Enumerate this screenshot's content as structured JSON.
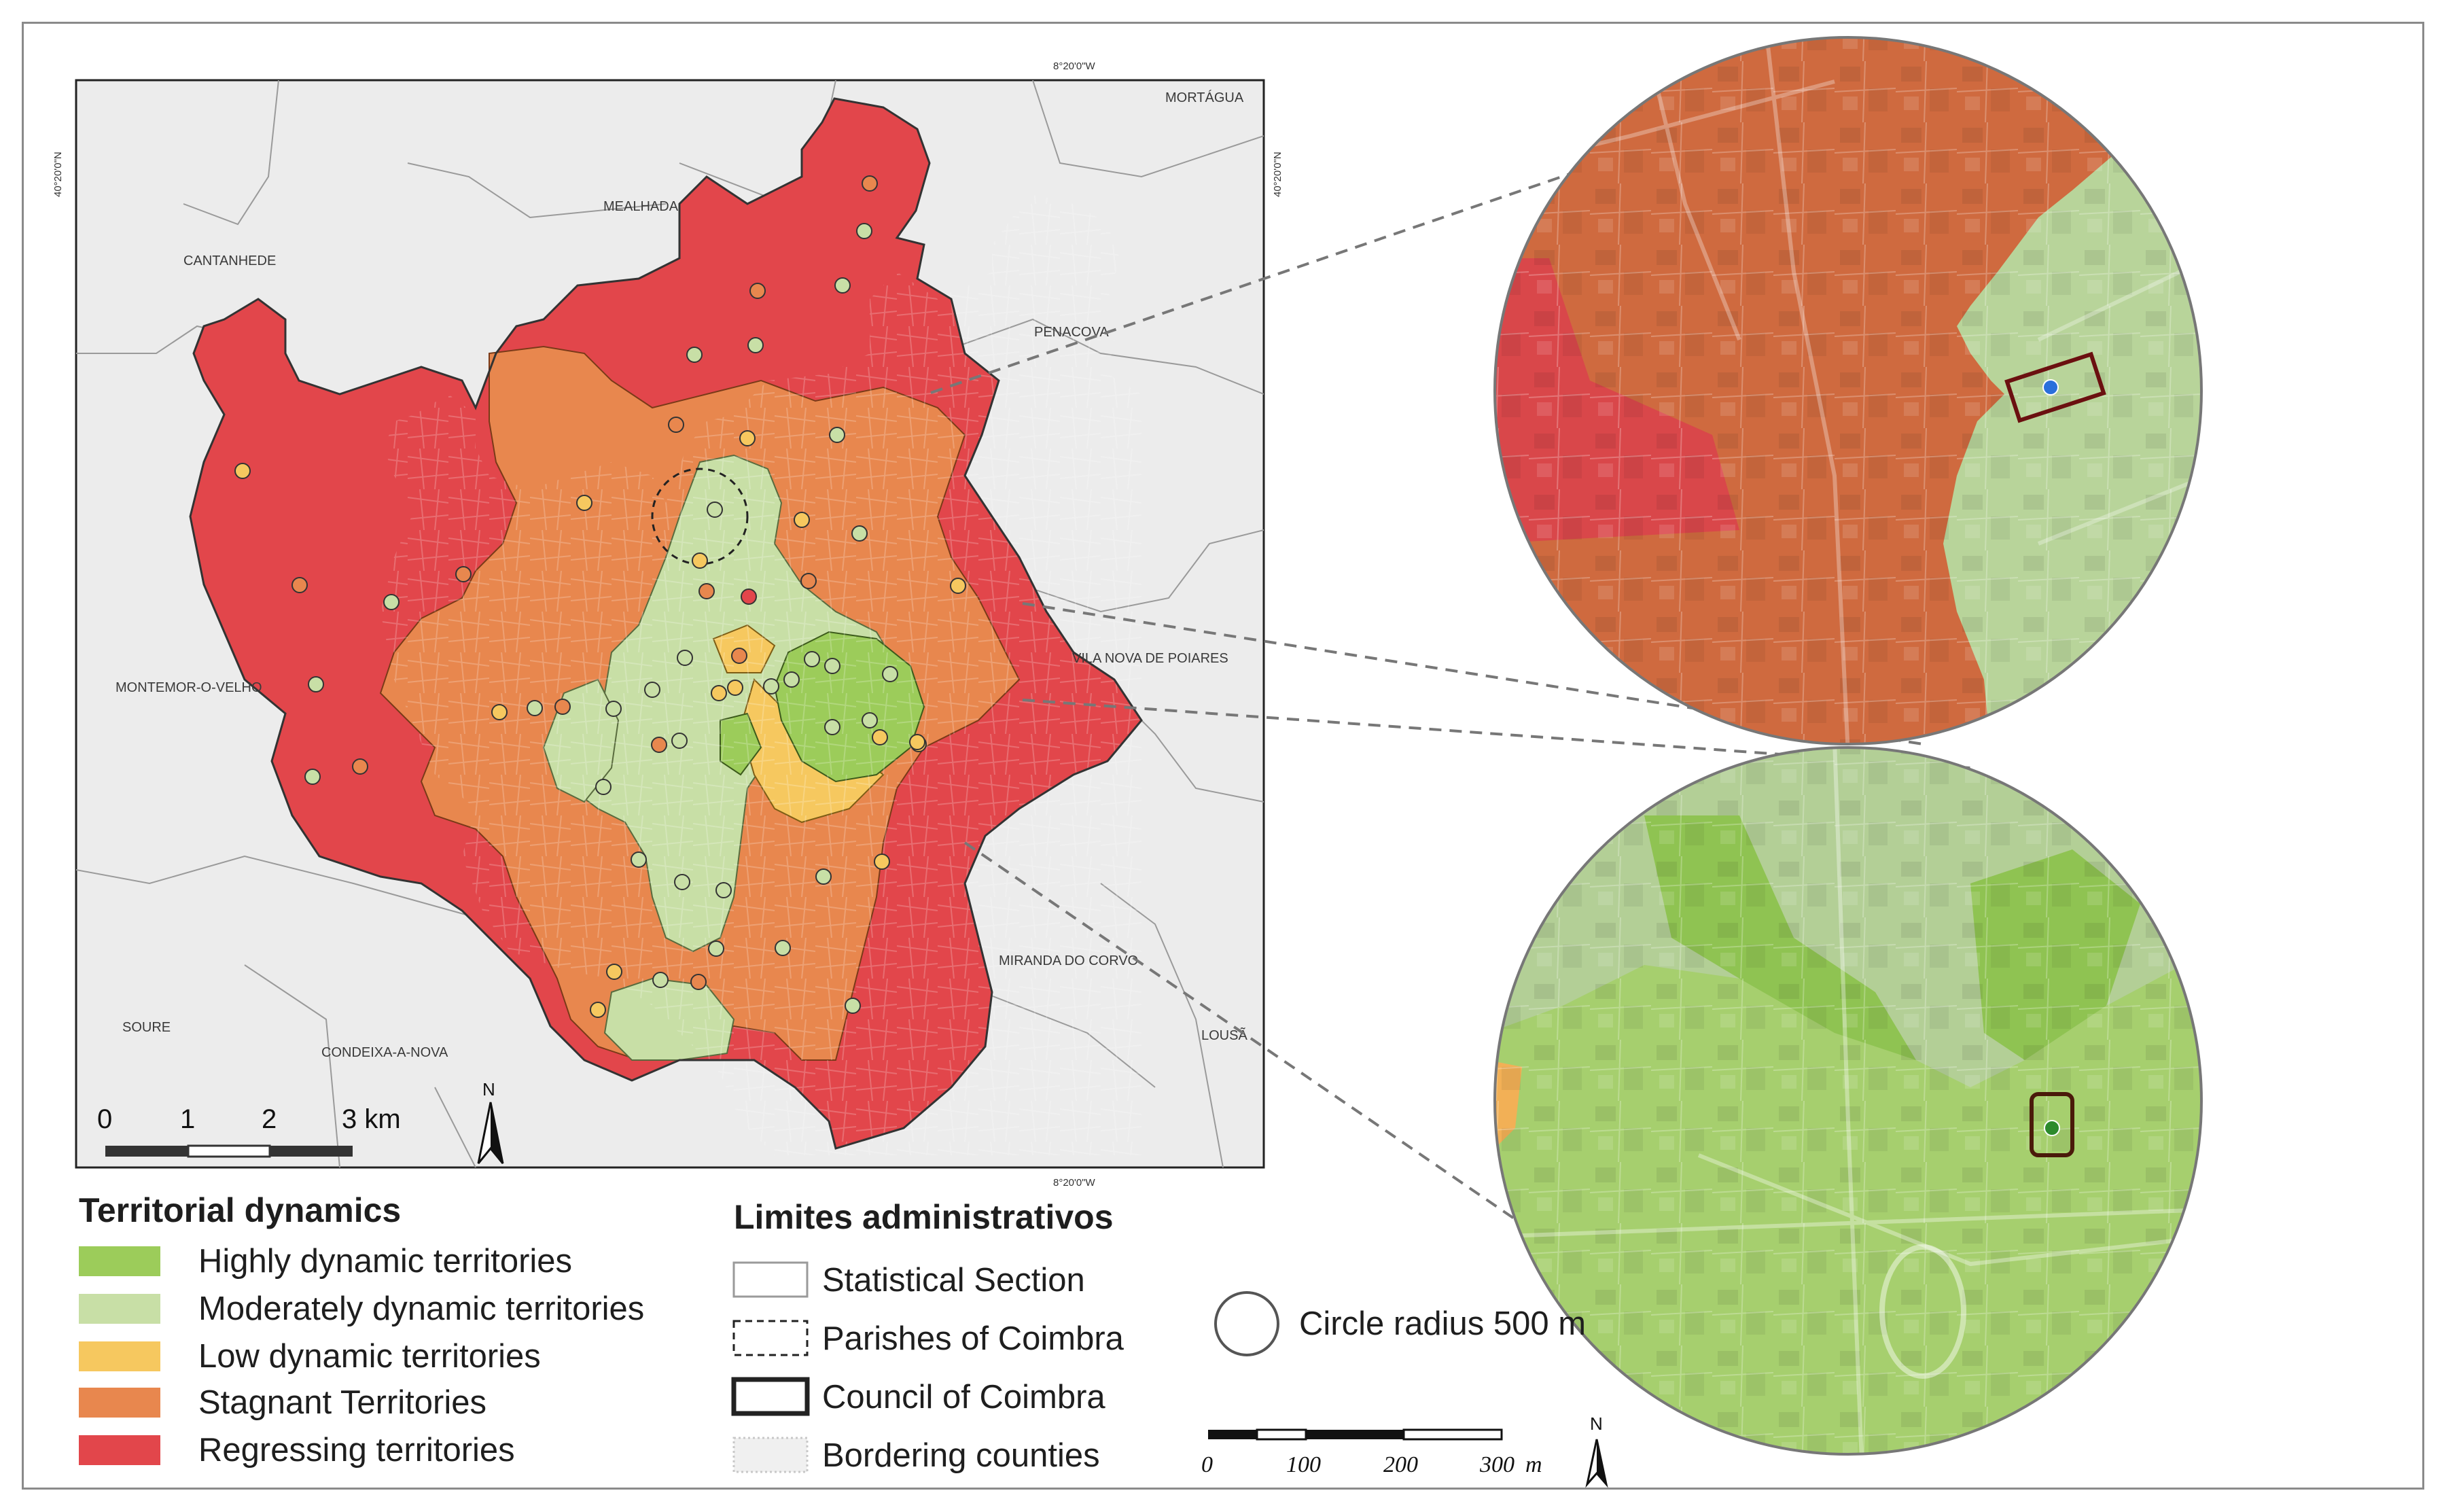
{
  "map": {
    "coords": {
      "top": "8°20'0\"W",
      "bottom": "8°20'0\"W",
      "left": "40°20'0\"N",
      "right": "40°20'0\"N"
    },
    "labels": [
      {
        "id": "mortagua",
        "text": "MORTÁGUA"
      },
      {
        "id": "mealhada",
        "text": "MEALHADA"
      },
      {
        "id": "cantanhede",
        "text": "CANTANHEDE"
      },
      {
        "id": "penacova",
        "text": "PENACOVA"
      },
      {
        "id": "vilanova",
        "text": "VILA NOVA DE POIARES"
      },
      {
        "id": "montemor",
        "text": "MONTEMOR-O-VELHO"
      },
      {
        "id": "miranda",
        "text": "MIRANDA DO CORVO"
      },
      {
        "id": "soure",
        "text": "SOURE"
      },
      {
        "id": "condeixa",
        "text": "CONDEIXA-A-NOVA"
      },
      {
        "id": "lousa",
        "text": "LOUSÃ"
      }
    ],
    "scalebar": {
      "ticks": [
        "0",
        "1",
        "2",
        "3 km"
      ]
    },
    "north": "N"
  },
  "colors": {
    "highly": "#9ccc5a",
    "moderately": "#c8dfa6",
    "low": "#f6c85f",
    "stagnant": "#e8874e",
    "regressing": "#e2464b"
  },
  "legend": {
    "title": "Territorial dynamics",
    "items": [
      {
        "label": "Highly dynamic territories",
        "color": "#9ccc5a"
      },
      {
        "label": "Moderately dynamic territories",
        "color": "#c8dfa6"
      },
      {
        "label": "Low dynamic territories",
        "color": "#f6c85f"
      },
      {
        "label": "Stagnant Territories",
        "color": "#e8874e"
      },
      {
        "label": "Regressing territories",
        "color": "#e2464b"
      }
    ]
  },
  "admin": {
    "title": "Limites administrativos",
    "items": [
      {
        "label": "Statistical Section",
        "style": "thin"
      },
      {
        "label": "Parishes of Coimbra",
        "style": "dashed"
      },
      {
        "label": "Council of Coimbra",
        "style": "thick"
      },
      {
        "label": "Bordering counties",
        "style": "dotted"
      }
    ]
  },
  "circle_legend": {
    "label": "Circle radius 500 m"
  },
  "zoom_scale": {
    "ticks": [
      "0",
      "100",
      "200",
      "300"
    ],
    "unit": "m",
    "north": "N"
  }
}
